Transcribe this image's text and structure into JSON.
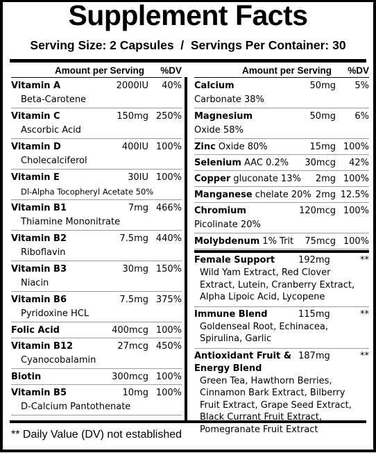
{
  "title": "Supplement Facts",
  "serving": "Serving Size: 2 Capsules  /  Servings Per Container: 30",
  "left": {
    "headers": [
      "Amount per Serving",
      "%DV"
    ],
    "rows": [
      {
        "name": "Vitamin A",
        "amount": "2000IU",
        "dv": "40%",
        "sub": "Beta-Carotene"
      },
      {
        "name": "Vitamin C",
        "amount": "150mg",
        "dv": "250%",
        "sub": "Ascorbic Acid"
      },
      {
        "name": "Vitamin D",
        "amount": "400IU",
        "dv": "100%",
        "sub": "Cholecalciferol"
      },
      {
        "name": "Vitamin E",
        "amount": "30IU",
        "dv": "100%",
        "sub": "Dl-Alpha Tocopheryl Acetate 50%"
      },
      {
        "name": "Vitamin B1",
        "amount": "7mg",
        "dv": "466%",
        "sub": "Thiamine Mononitrate"
      },
      {
        "name": "Vitamin B2",
        "amount": "7.5mg",
        "dv": "440%",
        "sub": "Riboflavin"
      },
      {
        "name": "Vitamin B3",
        "amount": "30mg",
        "dv": "150%",
        "sub": "Niacin"
      },
      {
        "name": "Vitamin B6",
        "amount": "7.5mg",
        "dv": "375%",
        "sub": "Pyridoxine HCL"
      },
      {
        "name": "Folic Acid",
        "amount": "400mcg",
        "dv": "100%"
      },
      {
        "name": "Vitamin B12",
        "amount": "27mcg",
        "dv": "450%",
        "sub": "Cyanocobalamin"
      },
      {
        "name": "Biotin",
        "amount": "300mcg",
        "dv": "100%"
      },
      {
        "name": "Vitamin B5",
        "amount": "10mg",
        "dv": "100%",
        "sub": "D-Calcium Pantothenate"
      }
    ]
  },
  "right": {
    "headers": [
      "Amount per Serving",
      "%DV"
    ],
    "rows": [
      {
        "name": "Calcium",
        "amount": "50mg",
        "dv": "5%",
        "sub": "Carbonate 38%"
      },
      {
        "name": "Magnesium",
        "amount": "50mg",
        "dv": "6%",
        "sub": "Oxide 58%"
      },
      {
        "name": "Zinc",
        "detail": "Oxide 80%",
        "amount": "15mg",
        "dv": "100%"
      },
      {
        "name": "Selenium",
        "detail": "AAC 0.2%",
        "amount": "30mcg",
        "dv": "42%"
      },
      {
        "name": "Copper",
        "detail": "gluconate 13%",
        "amount": "2mg",
        "dv": "100%"
      },
      {
        "name": "Manganese",
        "detail": "chelate 20%",
        "amount": "2mg",
        "dv": "12.5%"
      },
      {
        "name": "Chromium",
        "amount": "120mcg",
        "dv": "100%",
        "sub": "Picolinate 20%"
      },
      {
        "name": "Molybdenum",
        "detail": "1% Trit",
        "amount": "75mcg",
        "dv": "100%"
      }
    ],
    "blends": [
      {
        "name": "Female Support",
        "amount": "192mg",
        "dv": "**",
        "ingredients": "Wild Yam Extract, Red Clover Extract, Lutein, Cranberry Extract, Alpha Lipoic Acid, Lycopene"
      },
      {
        "name": "Immune Blend",
        "amount": "115mg",
        "dv": "**",
        "ingredients": "Goldenseal Root, Echinacea, Spirulina, Garlic"
      },
      {
        "name": "Antioxidant Fruit & Energy Blend",
        "amount": "187mg",
        "dv": "**",
        "ingredients": "Green Tea, Hawthorn Berries, Cinnamon Bark Extract, Bilberry Fruit Extract, Grape Seed Extract, Black Currant Fruit Extract, Pomegranate Fruit Extract"
      }
    ]
  },
  "footnote": "** Daily Value (DV) not established"
}
